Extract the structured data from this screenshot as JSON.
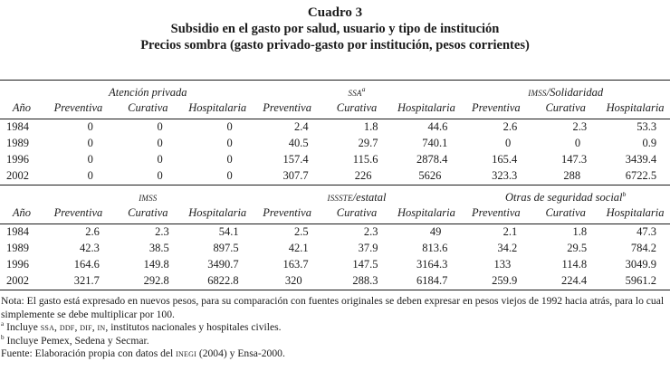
{
  "title": {
    "line1": "Cuadro 3",
    "line2": "Subsidio en el gasto por salud, usuario y tipo de institución",
    "line3": "Precios sombra (gasto privado-gasto por institución, pesos corrientes)"
  },
  "tables": [
    {
      "name": "upper-panel",
      "groups": [
        {
          "segments": [
            {
              "t": "Atención privada"
            }
          ]
        },
        {
          "segments": [
            {
              "t": "SSA",
              "sc": true
            },
            {
              "t": "a",
              "sup": true
            }
          ]
        },
        {
          "segments": [
            {
              "t": "IMSS",
              "sc": true
            },
            {
              "t": "/Solidaridad"
            }
          ]
        }
      ],
      "columns": [
        "Año",
        "Preventiva",
        "Curativa",
        "Hospitalaria",
        "Preventiva",
        "Curativa",
        "Hospitalaria",
        "Preventiva",
        "Curativa",
        "Hospitalaria"
      ],
      "rows": [
        {
          "year": "1984",
          "values": [
            "0",
            "0",
            "0",
            "2.4",
            "1.8",
            "44.6",
            "2.6",
            "2.3",
            "53.3"
          ]
        },
        {
          "year": "1989",
          "values": [
            "0",
            "0",
            "0",
            "40.5",
            "29.7",
            "740.1",
            "0",
            "0",
            "0.9"
          ]
        },
        {
          "year": "1996",
          "values": [
            "0",
            "0",
            "0",
            "157.4",
            "115.6",
            "2878.4",
            "165.4",
            "147.3",
            "3439.4"
          ]
        },
        {
          "year": "2002",
          "values": [
            "0",
            "0",
            "0",
            "307.7",
            "226",
            "5626",
            "323.3",
            "288",
            "6722.5"
          ]
        }
      ]
    },
    {
      "name": "lower-panel",
      "groups": [
        {
          "segments": [
            {
              "t": "IMSS",
              "sc": true
            }
          ]
        },
        {
          "segments": [
            {
              "t": "ISSSTE",
              "sc": true
            },
            {
              "t": "/estatal"
            }
          ]
        },
        {
          "segments": [
            {
              "t": "Otras de seguridad social"
            },
            {
              "t": "b",
              "sup": true
            }
          ]
        }
      ],
      "columns": [
        "Año",
        "Preventiva",
        "Curativa",
        "Hospitalaria",
        "Preventiva",
        "Curativa",
        "Hospitalaria",
        "Preventiva",
        "Curativa",
        "Hospitalaria"
      ],
      "rows": [
        {
          "year": "1984",
          "values": [
            "2.6",
            "2.3",
            "54.1",
            "2.5",
            "2.3",
            "49",
            "2.1",
            "1.8",
            "47.3"
          ]
        },
        {
          "year": "1989",
          "values": [
            "42.3",
            "38.5",
            "897.5",
            "42.1",
            "37.9",
            "813.6",
            "34.2",
            "29.5",
            "784.2"
          ]
        },
        {
          "year": "1996",
          "values": [
            "164.6",
            "149.8",
            "3490.7",
            "163.7",
            "147.5",
            "3164.3",
            "133",
            "114.8",
            "3049.9"
          ]
        },
        {
          "year": "2002",
          "values": [
            "321.7",
            "292.8",
            "6822.8",
            "320",
            "288.3",
            "6184.7",
            "259.9",
            "224.4",
            "5961.2"
          ]
        }
      ]
    }
  ],
  "notes": [
    {
      "name": "note-general",
      "segments": [
        {
          "t": "Nota: El gasto está expresado en nuevos pesos, para su comparación con fuentes originales se deben expresar en pesos viejos de 1992 hacia atrás, para lo cual simplemente se debe multiplicar por 100."
        }
      ]
    },
    {
      "name": "footnote-a",
      "segments": [
        {
          "t": "a",
          "sup": true
        },
        {
          "t": " Incluye "
        },
        {
          "t": "SSA",
          "sc": true
        },
        {
          "t": ", "
        },
        {
          "t": "DDF",
          "sc": true
        },
        {
          "t": ", "
        },
        {
          "t": "DIF",
          "sc": true
        },
        {
          "t": ", "
        },
        {
          "t": "IN",
          "sc": true
        },
        {
          "t": ", institutos nacionales y hospitales civiles."
        }
      ]
    },
    {
      "name": "footnote-b",
      "segments": [
        {
          "t": "b",
          "sup": true
        },
        {
          "t": " Incluye Pemex, Sedena y Secmar."
        }
      ]
    },
    {
      "name": "source-line",
      "segments": [
        {
          "t": "Fuente: Elaboración propia con datos del "
        },
        {
          "t": "INEGI",
          "sc": true
        },
        {
          "t": " (2004) y Ensa-2000."
        }
      ]
    }
  ]
}
